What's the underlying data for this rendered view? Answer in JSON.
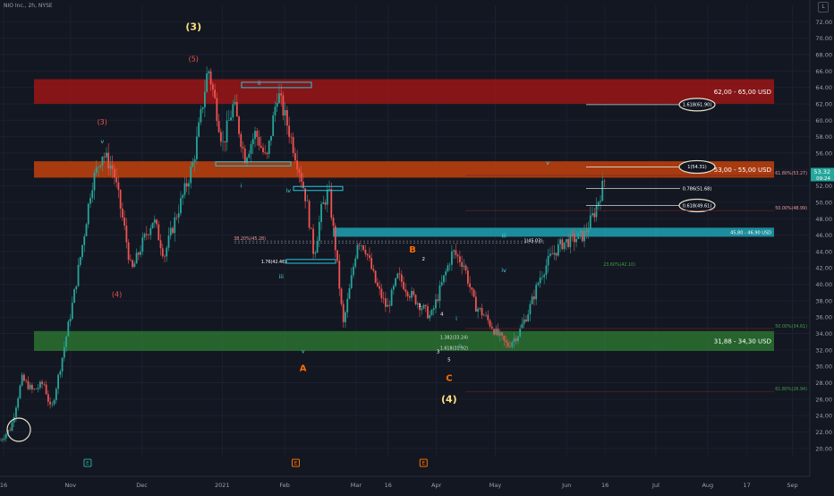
{
  "symbol_label": "NIO Inc., 2h, NYSE",
  "logscale_btn": "L",
  "colors": {
    "bg": "#131722",
    "grid": "#1c2030",
    "up": "#26a69a",
    "down": "#ef5350",
    "red_zone": "#b71c1c",
    "orange_zone": "#d84315",
    "teal_zone": "#26a3b4",
    "green_zone": "#2e7d32",
    "wave_orange": "#ff6d00",
    "wave_yellow": "#ffe082",
    "wave_red": "#ef5350",
    "wave_teal": "#4dd0e1"
  },
  "chart_data": {
    "type": "candlestick",
    "ylim": [
      19,
      74
    ],
    "price_ticks": [
      "72.00",
      "70.00",
      "68.00",
      "66.00",
      "64.00",
      "62.00",
      "60.00",
      "58.00",
      "56.00",
      "54.00",
      "52.00",
      "50.00",
      "48.00",
      "46.00",
      "44.00",
      "42.00",
      "40.00",
      "38.00",
      "36.00",
      "34.00",
      "32.00",
      "30.00",
      "28.00",
      "26.00",
      "24.00",
      "22.00",
      "20.00"
    ],
    "time_labels": [
      "16",
      "Nov",
      "Dec",
      "2021",
      "Feb",
      "Mar",
      "16",
      "Apr",
      "May",
      "Jun",
      "16",
      "Jul",
      "Aug",
      "17",
      "Sep"
    ],
    "current_price": "53.32",
    "countdown": "09:24",
    "path": [
      {
        "t": 0,
        "p": 21.0
      },
      {
        "t": 3,
        "p": 22.5
      },
      {
        "t": 6,
        "p": 28.5
      },
      {
        "t": 9,
        "p": 27.0
      },
      {
        "t": 12,
        "p": 28.0
      },
      {
        "t": 14,
        "p": 24.5
      },
      {
        "t": 17,
        "p": 31.0
      },
      {
        "t": 20,
        "p": 38.0
      },
      {
        "t": 23,
        "p": 46.0
      },
      {
        "t": 25,
        "p": 52.0
      },
      {
        "t": 28,
        "p": 56.0
      },
      {
        "t": 31,
        "p": 54.0
      },
      {
        "t": 34,
        "p": 47.0
      },
      {
        "t": 36,
        "p": 41.5
      },
      {
        "t": 39,
        "p": 45.0
      },
      {
        "t": 42,
        "p": 48.0
      },
      {
        "t": 45,
        "p": 43.5
      },
      {
        "t": 48,
        "p": 48.0
      },
      {
        "t": 51,
        "p": 52.0
      },
      {
        "t": 53,
        "p": 55.0
      },
      {
        "t": 55,
        "p": 60.5
      },
      {
        "t": 57,
        "p": 66.5
      },
      {
        "t": 59,
        "p": 62.0
      },
      {
        "t": 61,
        "p": 57.0
      },
      {
        "t": 64,
        "p": 62.0
      },
      {
        "t": 67,
        "p": 55.5
      },
      {
        "t": 70,
        "p": 58.5
      },
      {
        "t": 73,
        "p": 55.0
      },
      {
        "t": 76,
        "p": 63.5
      },
      {
        "t": 79,
        "p": 59.0
      },
      {
        "t": 82,
        "p": 54.0
      },
      {
        "t": 84,
        "p": 50.0
      },
      {
        "t": 86,
        "p": 43.5
      },
      {
        "t": 88,
        "p": 49.0
      },
      {
        "t": 90,
        "p": 51.5
      },
      {
        "t": 92,
        "p": 44.0
      },
      {
        "t": 94,
        "p": 35.0
      },
      {
        "t": 96,
        "p": 40.0
      },
      {
        "t": 98,
        "p": 45.5
      },
      {
        "t": 100,
        "p": 44.5
      },
      {
        "t": 103,
        "p": 40.0
      },
      {
        "t": 106,
        "p": 37.0
      },
      {
        "t": 109,
        "p": 41.0
      },
      {
        "t": 112,
        "p": 39.0
      },
      {
        "t": 115,
        "p": 37.5
      },
      {
        "t": 118,
        "p": 36.0
      },
      {
        "t": 121,
        "p": 40.0
      },
      {
        "t": 124,
        "p": 44.0
      },
      {
        "t": 127,
        "p": 42.5
      },
      {
        "t": 130,
        "p": 37.5
      },
      {
        "t": 133,
        "p": 36.0
      },
      {
        "t": 136,
        "p": 34.0
      },
      {
        "t": 139,
        "p": 32.5
      },
      {
        "t": 142,
        "p": 34.0
      },
      {
        "t": 145,
        "p": 37.0
      },
      {
        "t": 148,
        "p": 41.0
      },
      {
        "t": 151,
        "p": 43.5
      },
      {
        "t": 154,
        "p": 45.0
      },
      {
        "t": 157,
        "p": 45.5
      },
      {
        "t": 160,
        "p": 46.0
      },
      {
        "t": 163,
        "p": 49.0
      },
      {
        "t": 166,
        "p": 53.3
      }
    ],
    "zones": [
      {
        "id": "red",
        "lo": 62.0,
        "hi": 65.0,
        "label": "62,00 - 65,00 USD"
      },
      {
        "id": "orange",
        "lo": 53.0,
        "hi": 55.0,
        "label": "53,00 - 55,00 USD"
      },
      {
        "id": "teal",
        "lo": 45.8,
        "hi": 46.9,
        "label": "45,80 - 46,90 USD"
      },
      {
        "id": "green",
        "lo": 31.88,
        "hi": 34.3,
        "label": "31,88 - 34,30 USD"
      }
    ],
    "fib_levels": [
      {
        "p": 61.9,
        "label": "1.618(61.90)",
        "circled": true
      },
      {
        "p": 54.31,
        "label": "1(54.31)",
        "circled": true
      },
      {
        "p": 51.68,
        "label": "0.786(51.68)",
        "circled": false
      },
      {
        "p": 49.61,
        "label": "0.618(49.61)",
        "circled": true
      }
    ],
    "ret_labels": [
      {
        "p": 53.27,
        "label": "61.80%(53.27)"
      },
      {
        "p": 48.99,
        "label": "50.00%(48.99)"
      },
      {
        "p": 45.28,
        "label": "38.20%(45.28)"
      },
      {
        "p": 42.46,
        "label": "1.76(42.46)"
      },
      {
        "p": 45.03,
        "label": "1(45.03)"
      },
      {
        "p": 42.1,
        "label": "23.60%(42.10)"
      },
      {
        "p": 34.61,
        "label": "50.00%(34.61)"
      },
      {
        "p": 33.24,
        "label": "1.382(33.24)"
      },
      {
        "p": 31.92,
        "label": "1.618(31.92)"
      },
      {
        "p": 26.94,
        "label": "61.80%(26.94)"
      }
    ],
    "wave_labels": [
      {
        "t": 53,
        "p": 71,
        "text": "(3)",
        "kind": "yellow"
      },
      {
        "t": 53,
        "p": 67.2,
        "text": "(5)",
        "kind": "red"
      },
      {
        "t": 28,
        "p": 59.5,
        "text": "(3)",
        "kind": "red"
      },
      {
        "t": 28,
        "p": 57.2,
        "text": "v",
        "kind": "teal"
      },
      {
        "t": 32,
        "p": 38.5,
        "text": "(4)",
        "kind": "red"
      },
      {
        "t": 71,
        "p": 64.3,
        "text": "ii",
        "kind": "teal"
      },
      {
        "t": 66,
        "p": 51.8,
        "text": "i",
        "kind": "teal"
      },
      {
        "t": 79,
        "p": 51.2,
        "text": "iv",
        "kind": "teal"
      },
      {
        "t": 77,
        "p": 40.7,
        "text": "iii",
        "kind": "teal"
      },
      {
        "t": 83,
        "p": 31.6,
        "text": "v",
        "kind": "teal"
      },
      {
        "t": 83,
        "p": 29.4,
        "text": "A",
        "kind": "orange"
      },
      {
        "t": 113,
        "p": 43.9,
        "text": "B",
        "kind": "orange"
      },
      {
        "t": 123,
        "p": 28.2,
        "text": "C",
        "kind": "orange"
      },
      {
        "t": 123,
        "p": 25.6,
        "text": "(4)",
        "kind": "yellow"
      },
      {
        "t": 116,
        "p": 42.9,
        "text": "2",
        "kind": "white"
      },
      {
        "t": 115,
        "p": 37.2,
        "text": "1",
        "kind": "white"
      },
      {
        "t": 121,
        "p": 36.2,
        "text": "4",
        "kind": "white"
      },
      {
        "t": 120,
        "p": 31.6,
        "text": "3",
        "kind": "white"
      },
      {
        "t": 123,
        "p": 30.6,
        "text": "5",
        "kind": "white"
      },
      {
        "t": 125,
        "p": 35.6,
        "text": "i",
        "kind": "teal"
      },
      {
        "t": 126,
        "p": 32.2,
        "text": "ii",
        "kind": "teal"
      },
      {
        "t": 138,
        "p": 45.7,
        "text": "iii",
        "kind": "teal"
      },
      {
        "t": 138,
        "p": 41.5,
        "text": "iv",
        "kind": "teal"
      },
      {
        "t": 150,
        "p": 54.6,
        "text": "v",
        "kind": "teal"
      }
    ],
    "event_markers": [
      {
        "t": 24,
        "text": "E",
        "kind": "teal"
      },
      {
        "t": 81,
        "text": "E",
        "kind": "orange"
      },
      {
        "t": 116,
        "text": "E",
        "kind": "orange"
      }
    ]
  }
}
